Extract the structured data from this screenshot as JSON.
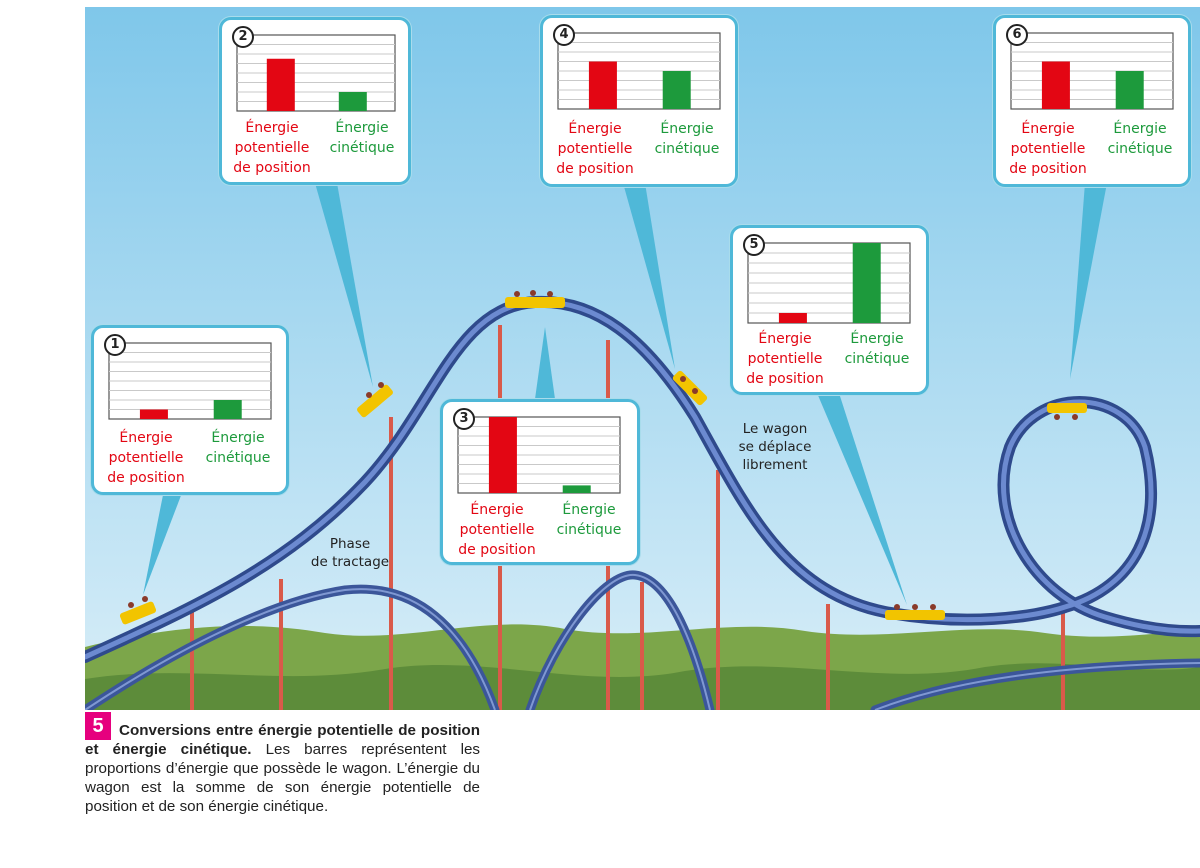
{
  "labels": {
    "potential": [
      "Énergie",
      "potentielle",
      "de position"
    ],
    "kinetic": [
      "Énergie",
      "cinétique"
    ]
  },
  "panels": [
    {
      "number": "1",
      "potential": 1.0,
      "kinetic": 2.0
    },
    {
      "number": "2",
      "potential": 5.5,
      "kinetic": 2.0
    },
    {
      "number": "3",
      "potential": 8.0,
      "kinetic": 0.8
    },
    {
      "number": "4",
      "potential": 5.0,
      "kinetic": 4.0
    },
    {
      "number": "5",
      "potential": 1.0,
      "kinetic": 8.0
    },
    {
      "number": "6",
      "potential": 5.0,
      "kinetic": 4.0
    }
  ],
  "notes": {
    "phase": [
      "Phase",
      "de tractage"
    ],
    "wagon": [
      "Le wagon",
      "se déplace",
      "librement"
    ]
  },
  "caption": {
    "number": "5",
    "title": "Conversions entre énergie potentielle de position et énergie cinétique.",
    "body": "Les barres représentent les proportions d’énergie que possède le wagon. L’énergie du wagon est la somme de son énergie potentielle de position et de son énergie cinétique."
  },
  "colors": {
    "potential": "#e30613",
    "kinetic": "#1d9a3c",
    "track": "#4a68b0",
    "panel_border": "#4fb8d8",
    "badge": "#e6007e"
  }
}
